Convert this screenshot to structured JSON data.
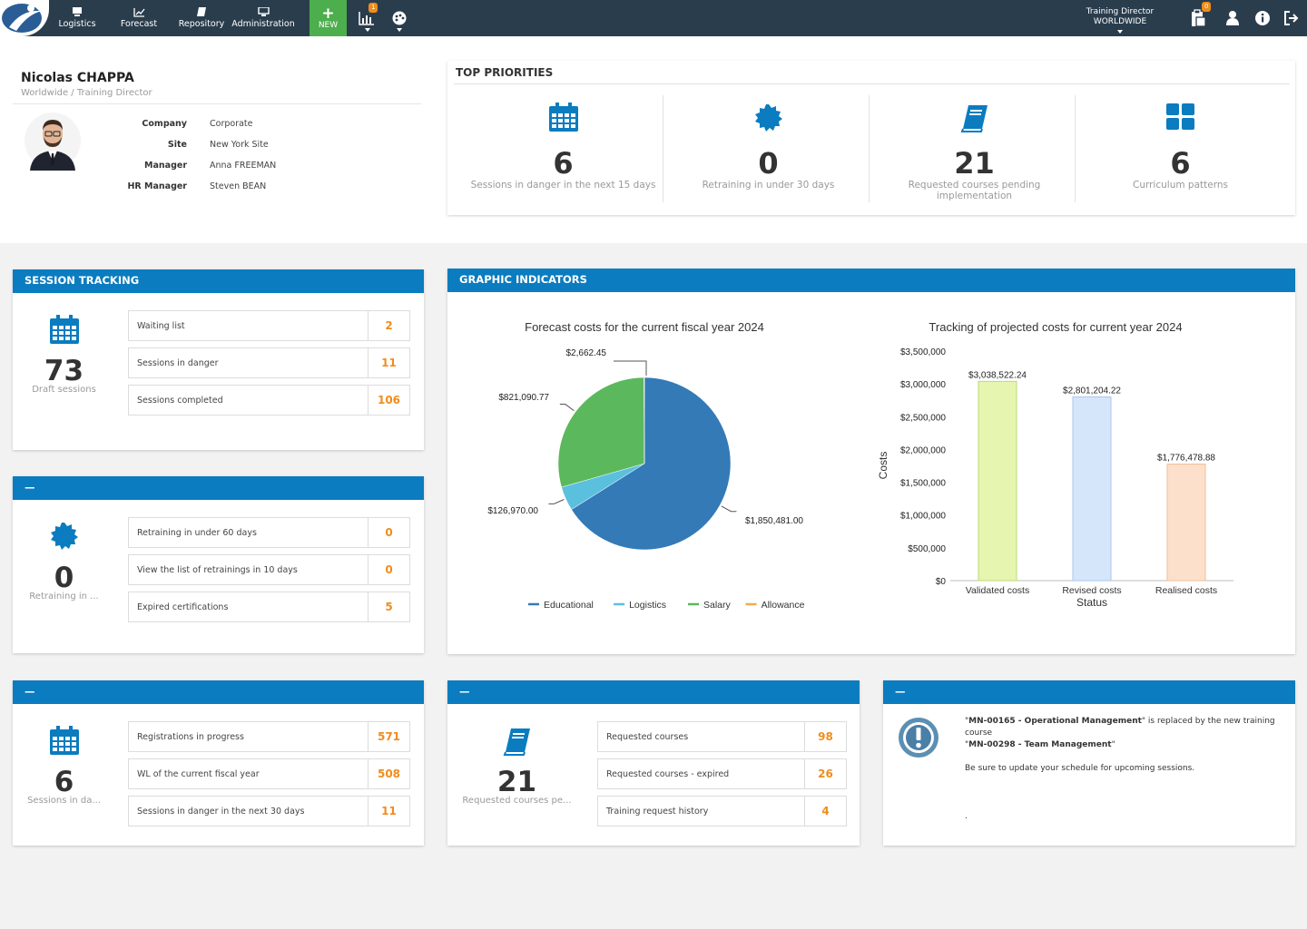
{
  "nav": {
    "items": [
      {
        "label": "Logistics",
        "icon": "monitor-icon"
      },
      {
        "label": "Forecast",
        "icon": "line-chart-icon"
      },
      {
        "label": "Repository",
        "icon": "book-icon"
      },
      {
        "label": "Administration",
        "icon": "desktop-icon"
      }
    ],
    "new_label": "NEW",
    "reports_badge": "1",
    "role_title": "Training Director",
    "role_scope": "WORLDWIDE",
    "docs_badge": "0"
  },
  "profile": {
    "name": "Nicolas CHAPPA",
    "subtitle": "Worldwide / Training Director",
    "fields": [
      {
        "key": "Company",
        "value": "Corporate"
      },
      {
        "key": "Site",
        "value": "New York Site"
      },
      {
        "key": "Manager",
        "value": "Anna FREEMAN"
      },
      {
        "key": "HR Manager",
        "value": "Steven BEAN"
      }
    ]
  },
  "priorities": {
    "title": "TOP PRIORITIES",
    "items": [
      {
        "value": "6",
        "label": "Sessions in danger in the next 15 days",
        "icon": "calendar-icon"
      },
      {
        "value": "0",
        "label": "Retraining in under 30 days",
        "icon": "badge-icon"
      },
      {
        "value": "21",
        "label": "Requested courses pending implementation",
        "icon": "book-icon"
      },
      {
        "value": "6",
        "label": "Curriculum patterns",
        "icon": "grid-icon"
      }
    ]
  },
  "session_tracking": {
    "title": "SESSION TRACKING",
    "big": "73",
    "big_label": "Draft sessions",
    "rows": [
      {
        "label": "Waiting list",
        "count": "2"
      },
      {
        "label": "Sessions in danger",
        "count": "11"
      },
      {
        "label": "Sessions completed",
        "count": "106"
      }
    ]
  },
  "retraining": {
    "title": "—",
    "big": "0",
    "big_label": "Retraining in ...",
    "rows": [
      {
        "label": "Retraining in under 60 days",
        "count": "0"
      },
      {
        "label": "View the list of retrainings in 10 days",
        "count": "0"
      },
      {
        "label": "Expired certifications",
        "count": "5"
      }
    ]
  },
  "registrations": {
    "title": "—",
    "big": "6",
    "big_label": "Sessions in da...",
    "rows": [
      {
        "label": "Registrations in progress",
        "count": "571"
      },
      {
        "label": "WL of the current fiscal year",
        "count": "508"
      },
      {
        "label": "Sessions in danger in the next 30 days",
        "count": "11"
      }
    ]
  },
  "requests": {
    "title": "—",
    "big": "21",
    "big_label": "Requested courses pe...",
    "rows": [
      {
        "label": "Requested courses",
        "count": "98"
      },
      {
        "label": "Requested courses - expired",
        "count": "26"
      },
      {
        "label": "Training request history",
        "count": "4"
      }
    ]
  },
  "notice": {
    "title": "—",
    "line1_q1": "\"",
    "line1_bold": "MN-00165 - Operational Management",
    "line1_rest": "\" is replaced by the new training course",
    "line2_q1": "\"",
    "line2_bold": "MN-00298 - Team Management",
    "line2_rest": "\"",
    "line3": "Be sure to update your schedule for upcoming sessions.",
    "dot": "."
  },
  "graphic_title": "GRAPHIC INDICATORS",
  "chart_data": [
    {
      "type": "pie",
      "title": "Forecast costs for the current fiscal year 2024",
      "categories": [
        "Educational",
        "Logistics",
        "Salary",
        "Allowance"
      ],
      "values": [
        1850481.0,
        126970.0,
        821090.77,
        2662.45
      ],
      "value_labels": [
        "$1,850,481.00",
        "$126,970.00",
        "$821,090.77",
        "$2,662.45"
      ],
      "colors": [
        "#337ab7",
        "#5bc0de",
        "#5cb85c",
        "#f0ad4e"
      ],
      "legend": "bottom"
    },
    {
      "type": "bar",
      "title": "Tracking of projected costs for current year 2024",
      "categories": [
        "Validated costs",
        "Revised costs",
        "Realised costs"
      ],
      "values": [
        3038522.24,
        2801204.22,
        1776478.88
      ],
      "value_labels": [
        "$3,038,522.24",
        "$2,801,204.22",
        "$1,776,478.88"
      ],
      "colors": [
        "#e6f5b0",
        "#d6e6fa",
        "#fce0cc"
      ],
      "border_colors": [
        "#bcd97a",
        "#a9c6ee",
        "#f2bd96"
      ],
      "xlabel": "Status",
      "ylabel": "Costs",
      "ylim": [
        0,
        3500000
      ],
      "yticks": [
        "$0",
        "$500,000",
        "$1,000,000",
        "$1,500,000",
        "$2,000,000",
        "$2,500,000",
        "$3,000,000",
        "$3,500,000"
      ]
    }
  ]
}
